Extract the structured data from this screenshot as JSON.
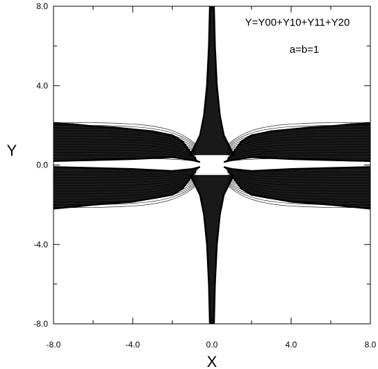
{
  "chart_data": {
    "type": "line",
    "title": "",
    "xlabel": "X",
    "ylabel": "Y",
    "xlim": [
      -8.0,
      8.0
    ],
    "ylim": [
      -8.0,
      8.0
    ],
    "x_ticks": [
      {
        "value": -8.0,
        "label": "-8.0"
      },
      {
        "value": -4.0,
        "label": "-4.0"
      },
      {
        "value": 0.0,
        "label": "0.0"
      },
      {
        "value": 4.0,
        "label": "4.0"
      },
      {
        "value": 8.0,
        "label": "8.0"
      }
    ],
    "y_ticks": [
      {
        "value": -8.0,
        "label": "-8.0"
      },
      {
        "value": -4.0,
        "label": "-4.0"
      },
      {
        "value": 0.0,
        "label": "0.0"
      },
      {
        "value": 4.0,
        "label": "4.0"
      },
      {
        "value": 8.0,
        "label": "8.0"
      }
    ],
    "annotations": [
      {
        "text": "Y=Y00+Y10+Y11+Y20",
        "position": "top-right"
      },
      {
        "text": "a=b=1",
        "position": "top-right"
      }
    ],
    "grid": false,
    "legend": "none",
    "line_color": "#000000",
    "series": [
      {
        "x": [
          -8.0,
          -7.0,
          -6.0,
          -5.0,
          -4.0,
          -3.0,
          -2.0,
          -1.5,
          -1.2,
          -1.0,
          -0.8
        ],
        "y": [
          2.1,
          2.05,
          1.95,
          1.9,
          1.8,
          1.7,
          1.5,
          1.2,
          0.8,
          0.5,
          0.3
        ]
      },
      {
        "x": [
          -8.0,
          -6.0,
          -4.0,
          -2.0,
          -1.0,
          -0.6
        ],
        "y": [
          0.2,
          0.25,
          0.3,
          0.4,
          0.25,
          0.15
        ]
      },
      {
        "x": [
          8.0,
          7.0,
          6.0,
          5.0,
          4.0,
          3.0,
          2.0,
          1.5,
          1.2,
          1.0,
          0.8
        ],
        "y": [
          2.1,
          2.05,
          1.95,
          1.9,
          1.8,
          1.7,
          1.5,
          1.2,
          0.8,
          0.5,
          0.3
        ]
      },
      {
        "x": [
          8.0,
          6.0,
          4.0,
          2.0,
          1.0,
          0.6
        ],
        "y": [
          0.2,
          0.25,
          0.3,
          0.4,
          0.25,
          0.15
        ]
      },
      {
        "x": [
          -8.0,
          -6.0,
          -4.0,
          -2.0,
          -1.5,
          -1.2,
          -1.0,
          -0.8
        ],
        "y": [
          -2.2,
          -2.0,
          -1.85,
          -1.5,
          -1.2,
          -0.8,
          -0.5,
          -0.3
        ]
      },
      {
        "x": [
          -8.0,
          -6.0,
          -4.0,
          -2.0,
          -1.0,
          -0.6
        ],
        "y": [
          -0.1,
          -0.15,
          -0.2,
          -0.3,
          -0.2,
          -0.1
        ]
      },
      {
        "x": [
          8.0,
          6.0,
          4.0,
          2.0,
          1.5,
          1.2,
          1.0,
          0.8
        ],
        "y": [
          -2.2,
          -2.0,
          -1.85,
          -1.5,
          -1.2,
          -0.8,
          -0.5,
          -0.3
        ]
      },
      {
        "x": [
          8.0,
          6.0,
          4.0,
          2.0,
          1.0,
          0.6
        ],
        "y": [
          -0.1,
          -0.15,
          -0.2,
          -0.3,
          -0.2,
          -0.1
        ]
      },
      {
        "x": [
          -0.1,
          -0.15,
          -0.25,
          -0.4,
          -0.6,
          -0.9,
          -1.1
        ],
        "y": [
          8.0,
          6.0,
          4.0,
          2.5,
          1.5,
          0.9,
          0.5
        ]
      },
      {
        "x": [
          0.1,
          0.15,
          0.25,
          0.4,
          0.6,
          0.9,
          1.1
        ],
        "y": [
          8.0,
          6.0,
          4.0,
          2.5,
          1.5,
          0.9,
          0.5
        ]
      },
      {
        "x": [
          -0.1,
          -0.15,
          -0.25,
          -0.4,
          -0.6,
          -0.9,
          -1.1
        ],
        "y": [
          -8.0,
          -6.0,
          -4.0,
          -2.5,
          -1.5,
          -0.9,
          -0.5
        ]
      },
      {
        "x": [
          0.1,
          0.15,
          0.25,
          0.4,
          0.6,
          0.9,
          1.1
        ],
        "y": [
          -8.0,
          -6.0,
          -4.0,
          -2.5,
          -1.5,
          -0.9,
          -0.5
        ]
      }
    ]
  }
}
